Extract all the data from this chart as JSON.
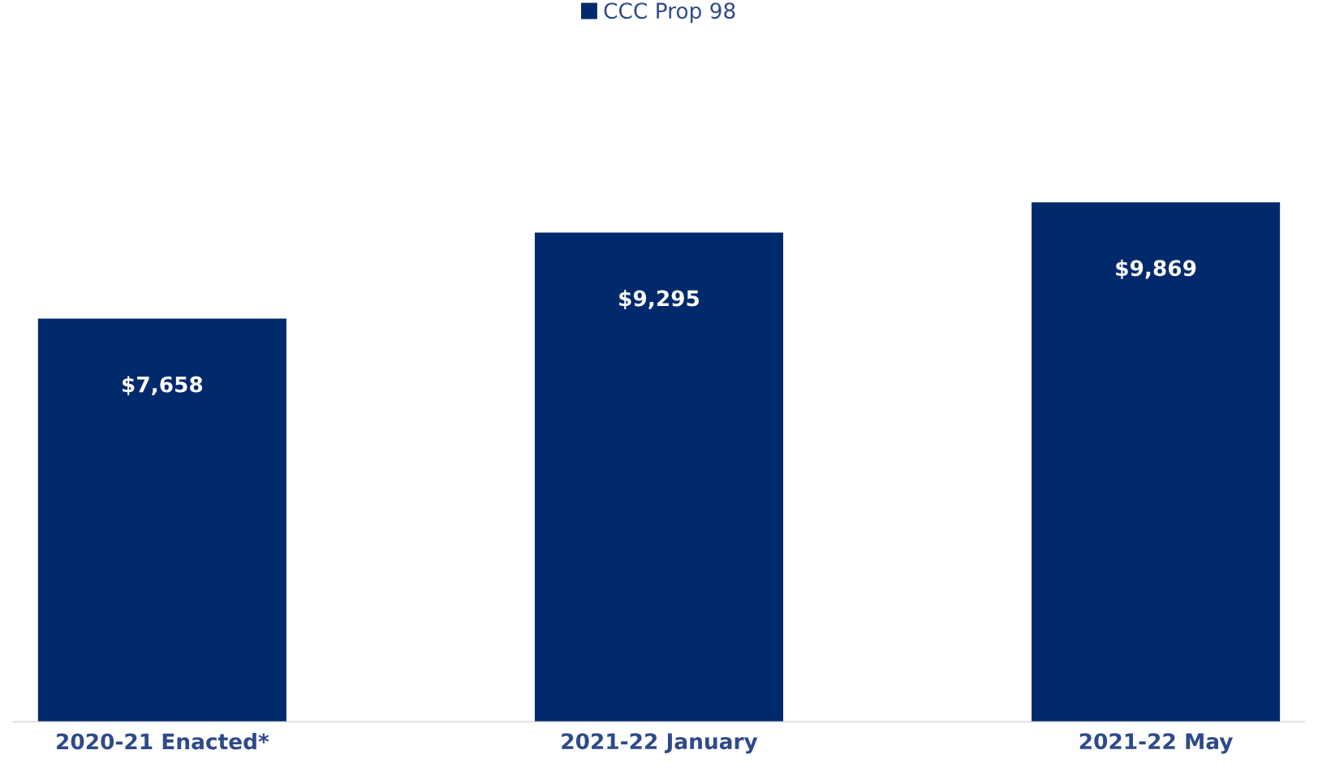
{
  "chart_data": {
    "type": "bar",
    "categories": [
      "2020-21 Enacted*",
      "2021-22 January",
      "2021-22 May"
    ],
    "series": [
      {
        "name": "CCC Prop 98",
        "color": "#002a6c",
        "values": [
          7658,
          9295,
          9869
        ],
        "value_labels": [
          "$7,658",
          "$9,295",
          "$9,869"
        ]
      }
    ],
    "legend": "top",
    "grid": false
  }
}
